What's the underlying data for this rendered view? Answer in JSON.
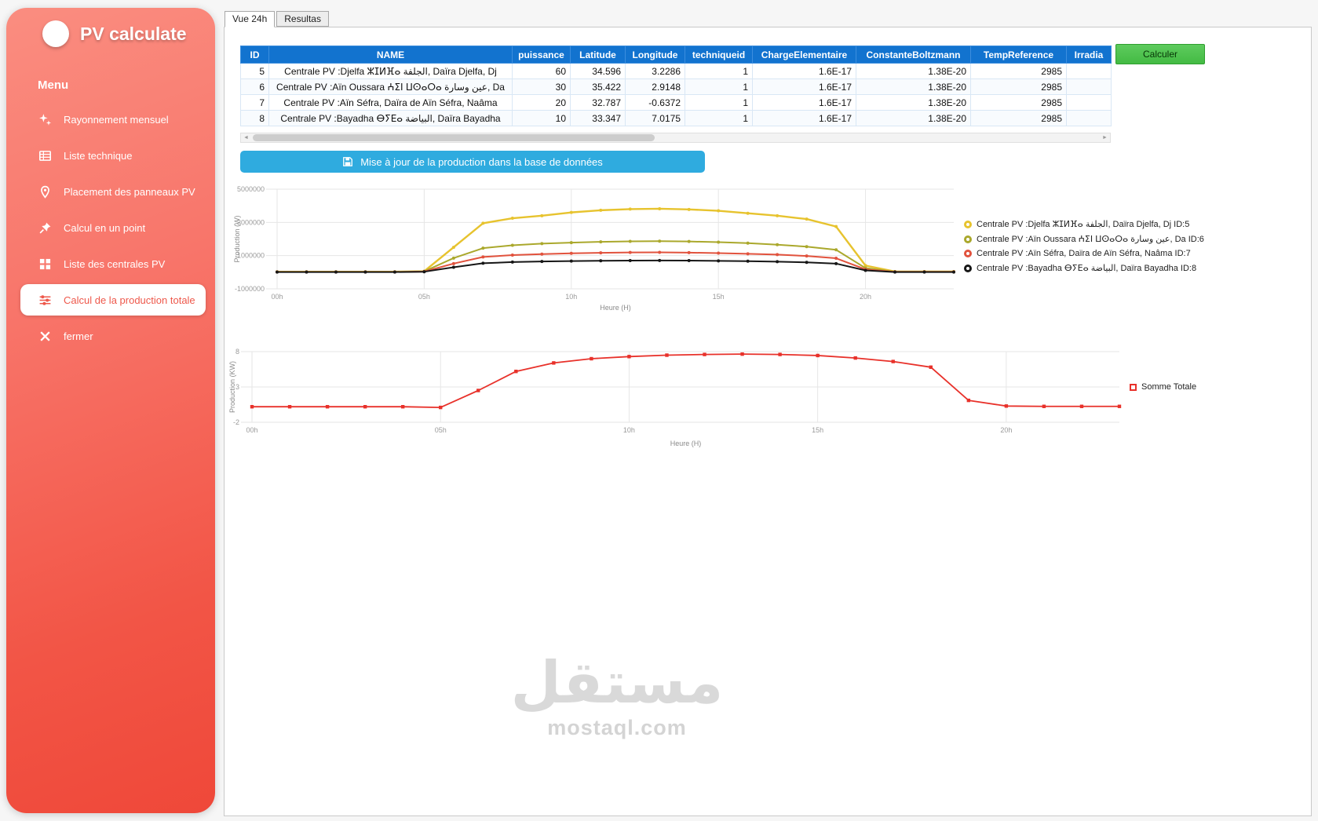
{
  "app": {
    "title": "PV calculate",
    "menu_header": "Menu"
  },
  "sidebar": {
    "items": [
      {
        "label": "Rayonnement mensuel",
        "icon": "sparkle-icon",
        "active": false
      },
      {
        "label": "Liste technique",
        "icon": "table-list-icon",
        "active": false
      },
      {
        "label": "Placement des panneaux PV",
        "icon": "map-pin-icon",
        "active": false
      },
      {
        "label": "Calcul en un point",
        "icon": "pushpin-icon",
        "active": false
      },
      {
        "label": "Liste des centrales PV",
        "icon": "grid-icon",
        "active": false
      },
      {
        "label": "Calcul de la production totale",
        "icon": "sliders-icon",
        "active": true
      },
      {
        "label": "fermer",
        "icon": "close-icon",
        "active": false
      }
    ]
  },
  "tabs": [
    {
      "label": "Vue 24h",
      "active": true
    },
    {
      "label": "Resultas",
      "active": false
    }
  ],
  "table": {
    "headers": [
      "ID",
      "NAME",
      "puissance",
      "Latitude",
      "Longitude",
      "techniqueid",
      "ChargeElementaire",
      "ConstanteBoltzmann",
      "TempReference",
      "Irradia"
    ],
    "rows": [
      [
        "5",
        "Centrale PV :Djelfa ⵣⵊⵍⴼⴰ الجلفة, Daïra Djelfa, Dj",
        "60",
        "34.596",
        "3.2286",
        "1",
        "1.6E-17",
        "1.38E-20",
        "2985",
        ""
      ],
      [
        "6",
        "Centrale PV :Aïn Oussara ⵄⵉⵏ ⵡⵙⴰⵔⴰ عين وسارة, Da",
        "30",
        "35.422",
        "2.9148",
        "1",
        "1.6E-17",
        "1.38E-20",
        "2985",
        ""
      ],
      [
        "7",
        "Centrale PV :Aïn Séfra, Daïra de Aïn Séfra, Naâma",
        "20",
        "32.787",
        "-0.6372",
        "1",
        "1.6E-17",
        "1.38E-20",
        "2985",
        ""
      ],
      [
        "8",
        "Centrale PV :Bayadha ⴱⵢⴹⴰ البياضة, Daïra Bayadha",
        "10",
        "33.347",
        "7.0175",
        "1",
        "1.6E-17",
        "1.38E-20",
        "2985",
        ""
      ]
    ]
  },
  "buttons": {
    "calculer": "Calculer",
    "update": "Mise à jour de la production dans la base de données"
  },
  "chart_data": [
    {
      "type": "line",
      "title": "",
      "xlabel": "Heure (H)",
      "ylabel": "Production (W)",
      "x_range": [
        0,
        23
      ],
      "x_tick_hours": [
        0,
        5,
        10,
        15,
        20
      ],
      "x_tick_labels": [
        "00h",
        "05h",
        "10h",
        "15h",
        "20h"
      ],
      "ylim": [
        -1000000,
        5000000
      ],
      "y_ticks": [
        5000000,
        3000000,
        1000000,
        -1000000
      ],
      "grid": true,
      "legend_position": "right",
      "series": [
        {
          "name": "Centrale PV :Djelfa ⵣⵊⵍⴼⴰ الجلفة, Daïra Djelfa, Dj ID:5",
          "color": "#e7c32e",
          "marker": "circle",
          "width": 2.4,
          "values": [
            30000,
            30000,
            30000,
            30000,
            30000,
            60000,
            1500000,
            2950000,
            3250000,
            3400000,
            3600000,
            3730000,
            3800000,
            3820000,
            3780000,
            3700000,
            3550000,
            3400000,
            3200000,
            2750000,
            400000,
            40000,
            40000,
            40000
          ]
        },
        {
          "name": "Centrale PV :Aïn Oussara ⵄⵉⵏ ⵡⵙⴰⵔⴰ عين وسارة, Da ID:6",
          "color": "#aaa82c",
          "marker": "circle",
          "width": 2,
          "values": [
            20000,
            20000,
            20000,
            20000,
            20000,
            50000,
            850000,
            1450000,
            1620000,
            1720000,
            1780000,
            1830000,
            1860000,
            1870000,
            1850000,
            1810000,
            1750000,
            1660000,
            1540000,
            1350000,
            250000,
            30000,
            30000,
            30000
          ]
        },
        {
          "name": "Centrale PV :Aïn Séfra, Daïra de Aïn Séfra, Naâma  ID:7",
          "color": "#e1523d",
          "marker": "circle",
          "width": 2,
          "values": [
            15000,
            15000,
            15000,
            15000,
            15000,
            40000,
            520000,
            920000,
            1030000,
            1090000,
            1140000,
            1170000,
            1190000,
            1195000,
            1180000,
            1150000,
            1110000,
            1060000,
            980000,
            840000,
            170000,
            20000,
            20000,
            20000
          ]
        },
        {
          "name": "Centrale PV :Bayadha ⴱⵢⴹⴰ البياضة, Daïra Bayadha ID:8",
          "color": "#161616",
          "marker": "circle",
          "width": 2,
          "values": [
            10000,
            10000,
            10000,
            10000,
            10000,
            30000,
            300000,
            540000,
            610000,
            645000,
            670000,
            690000,
            700000,
            705000,
            698000,
            685000,
            665000,
            635000,
            595000,
            520000,
            110000,
            12000,
            12000,
            12000
          ]
        }
      ]
    },
    {
      "type": "line",
      "title": "",
      "xlabel": "Heure (H)",
      "ylabel": "Production (KW)",
      "x_range": [
        0,
        23
      ],
      "x_tick_hours": [
        0,
        5,
        10,
        15,
        20
      ],
      "x_tick_labels": [
        "00h",
        "05h",
        "10h",
        "15h",
        "20h"
      ],
      "ylim": [
        -2,
        8
      ],
      "y_ticks": [
        8,
        3,
        -2
      ],
      "grid": true,
      "legend_position": "right",
      "series": [
        {
          "name": "Somme Totale",
          "color": "#e8312a",
          "marker": "square",
          "width": 1.8,
          "values": [
            0.2,
            0.2,
            0.2,
            0.2,
            0.2,
            0.1,
            2.5,
            5.2,
            6.4,
            7.0,
            7.3,
            7.5,
            7.6,
            7.65,
            7.6,
            7.45,
            7.1,
            6.6,
            5.8,
            1.1,
            0.3,
            0.25,
            0.25,
            0.25
          ]
        }
      ]
    }
  ],
  "watermark": {
    "arabic": "مستقل",
    "latin": "mostaql.com"
  },
  "colors": {
    "sidebar_top": "#fa8d80",
    "sidebar_bottom": "#ef4839",
    "table_header_blue": "#1273cf",
    "calculer_green": "#4cc24c",
    "update_blue": "#2fabdf",
    "series_yellow": "#e7c32e",
    "series_olive": "#aaa82c",
    "series_red": "#e1523d",
    "series_black": "#161616",
    "somme_red": "#e8312a"
  }
}
